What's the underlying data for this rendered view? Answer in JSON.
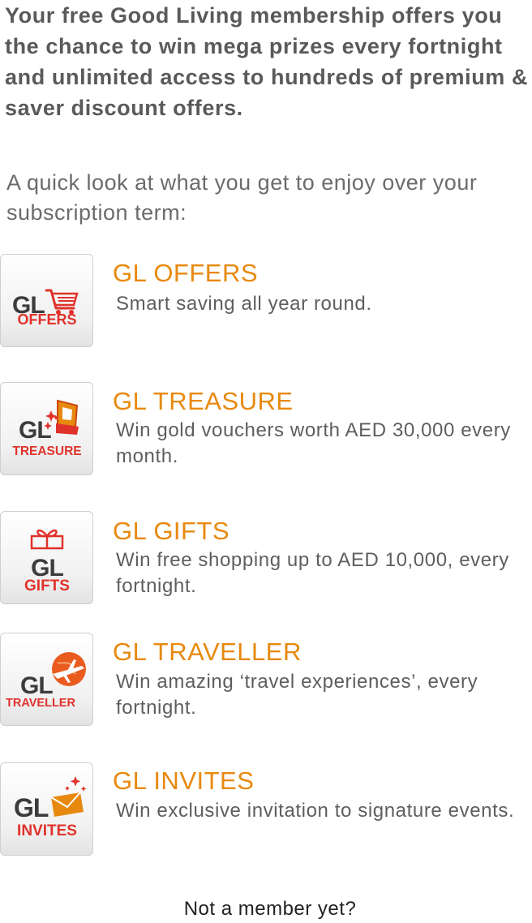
{
  "intro": {
    "headline": "Your free Good Living membership offers you the chance to win mega prizes every fortnight and unlimited access to hundreds of premium & saver discount offers.",
    "subtext": "A quick look at what you get to enjoy over your subscription term:"
  },
  "features": [
    {
      "icon": "gl-offers-cart-icon",
      "badge_label": "OFFERS",
      "title": "GL OFFERS",
      "description": "Smart saving all year round."
    },
    {
      "icon": "gl-treasure-chest-icon",
      "badge_label": "TREASURE",
      "title": "GL TREASURE",
      "description": "Win gold vouchers worth AED 30,000 every month."
    },
    {
      "icon": "gl-gifts-present-icon",
      "badge_label": "GIFTS",
      "title": "GL GIFTS",
      "description": "Win free shopping up to AED 10,000, every fortnight."
    },
    {
      "icon": "gl-traveller-plane-icon",
      "badge_label": "TRAVELLER",
      "title": "GL TRAVELLER",
      "description": "Win amazing ‘travel experiences’, every fortnight."
    },
    {
      "icon": "gl-invites-envelope-icon",
      "badge_label": "INVITES",
      "title": "GL INVITES",
      "description": "Win exclusive invitation to signature events."
    }
  ],
  "logo_text": "GL",
  "cta": {
    "label": "Not a member yet?"
  },
  "colors": {
    "accent": "#e8890f",
    "badge_red": "#e0322b",
    "logo_gray": "#3c3c3c",
    "text_dark": "#5a5a5a"
  }
}
